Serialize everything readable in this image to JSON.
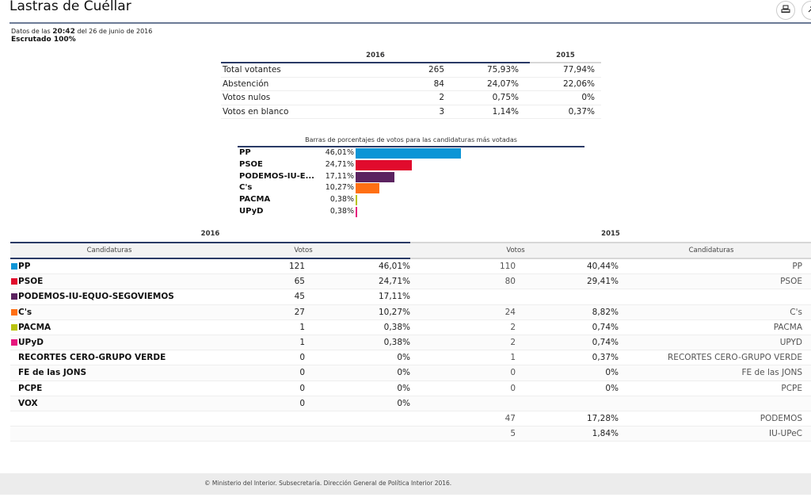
{
  "page": {
    "title": "Lastras de Cuéllar",
    "print_icon": "printer-icon",
    "share_icon": "share-icon"
  },
  "meta": {
    "prefix": "Datos de las",
    "time": "20:42",
    "date_text": "del 26 de junio de 2016",
    "scrutinized": "Escrutado 100%"
  },
  "summary": {
    "year_current": "2016",
    "year_previous": "2015",
    "rows": [
      {
        "label": "Total votantes",
        "votes": "265",
        "pct_2016": "75,93%",
        "pct_2015": "77,94%"
      },
      {
        "label": "Abstención",
        "votes": "84",
        "pct_2016": "24,07%",
        "pct_2015": "22,06%"
      },
      {
        "label": "Votos nulos",
        "votes": "2",
        "pct_2016": "0,75%",
        "pct_2015": "0%"
      },
      {
        "label": "Votos en blanco",
        "votes": "3",
        "pct_2016": "1,14%",
        "pct_2015": "0,37%"
      }
    ]
  },
  "chart_data": {
    "type": "bar",
    "title": "Barras de porcentajes de votos para las candidaturas más votadas",
    "orientation": "horizontal",
    "categories": [
      "PP",
      "PSOE",
      "PODEMOS-IU-E...",
      "C's",
      "PACMA",
      "UPyD"
    ],
    "values": [
      46.01,
      24.71,
      17.11,
      10.27,
      0.38,
      0.38
    ],
    "labels": [
      "46,01%",
      "24,71%",
      "17,11%",
      "10,27%",
      "0,38%",
      "0,38%"
    ],
    "colors": [
      "#0c95d6",
      "#e10b2d",
      "#5b2360",
      "#ff6f13",
      "#b9c30d",
      "#e6157d"
    ],
    "xlim": [
      0,
      100
    ]
  },
  "results": {
    "year_current": "2016",
    "year_previous": "2015",
    "headers": {
      "candidaturas_2016": "Candidaturas",
      "votos_2016": "Votos",
      "votos_2015": "Votos",
      "candidaturas_2015": "Candidaturas"
    },
    "rows": [
      {
        "name_2016": "PP",
        "color": "#0c95d6",
        "votes_2016": "121",
        "pct_2016": "46,01%",
        "votes_2015": "110",
        "pct_2015": "40,44%",
        "name_2015": "PP"
      },
      {
        "name_2016": "PSOE",
        "color": "#e10b2d",
        "votes_2016": "65",
        "pct_2016": "24,71%",
        "votes_2015": "80",
        "pct_2015": "29,41%",
        "name_2015": "PSOE"
      },
      {
        "name_2016": "PODEMOS-IU-EQUO-SEGOVIEMOS",
        "color": "#5b2360",
        "votes_2016": "45",
        "pct_2016": "17,11%",
        "votes_2015": "",
        "pct_2015": "",
        "name_2015": ""
      },
      {
        "name_2016": "C's",
        "color": "#ff6f13",
        "votes_2016": "27",
        "pct_2016": "10,27%",
        "votes_2015": "24",
        "pct_2015": "8,82%",
        "name_2015": "C's"
      },
      {
        "name_2016": "PACMA",
        "color": "#b9c30d",
        "votes_2016": "1",
        "pct_2016": "0,38%",
        "votes_2015": "2",
        "pct_2015": "0,74%",
        "name_2015": "PACMA"
      },
      {
        "name_2016": "UPyD",
        "color": "#e6157d",
        "votes_2016": "1",
        "pct_2016": "0,38%",
        "votes_2015": "2",
        "pct_2015": "0,74%",
        "name_2015": "UPYD"
      },
      {
        "name_2016": "RECORTES CERO-GRUPO VERDE",
        "color": "",
        "votes_2016": "0",
        "pct_2016": "0%",
        "votes_2015": "1",
        "pct_2015": "0,37%",
        "name_2015": "RECORTES CERO-GRUPO VERDE"
      },
      {
        "name_2016": "FE de las JONS",
        "color": "",
        "votes_2016": "0",
        "pct_2016": "0%",
        "votes_2015": "0",
        "pct_2015": "0%",
        "name_2015": "FE de las JONS"
      },
      {
        "name_2016": "PCPE",
        "color": "",
        "votes_2016": "0",
        "pct_2016": "0%",
        "votes_2015": "0",
        "pct_2015": "0%",
        "name_2015": "PCPE"
      },
      {
        "name_2016": "VOX",
        "color": "",
        "votes_2016": "0",
        "pct_2016": "0%",
        "votes_2015": "",
        "pct_2015": "",
        "name_2015": ""
      },
      {
        "name_2016": "",
        "color": "",
        "votes_2016": "",
        "pct_2016": "",
        "votes_2015": "47",
        "pct_2015": "17,28%",
        "name_2015": "PODEMOS"
      },
      {
        "name_2016": "",
        "color": "",
        "votes_2016": "",
        "pct_2016": "",
        "votes_2015": "5",
        "pct_2015": "1,84%",
        "name_2015": "IU-UPeC"
      }
    ]
  },
  "footer": {
    "text": "© Ministerio del Interior. Subsecretaría. Dirección General de Política Interior 2016."
  }
}
